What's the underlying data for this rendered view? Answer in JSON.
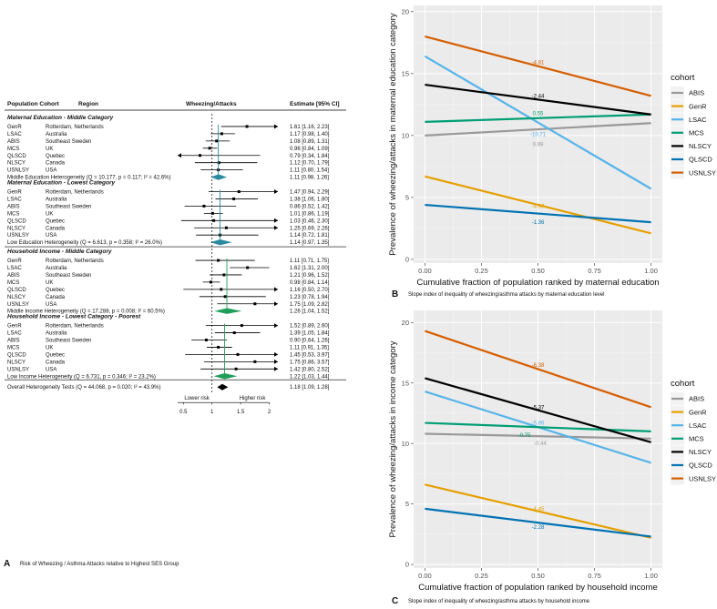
{
  "forest": {
    "headers": {
      "cohort": "Population Cohort",
      "region": "Region",
      "plot": "Wheezing/Attacks",
      "estimate": "Estimate [95% CI]"
    },
    "xticks": [
      "0.5",
      "1",
      "1.5",
      "2"
    ],
    "xtick_values": [
      0.5,
      1,
      1.5,
      2
    ],
    "xrange": [
      0.4,
      2.15
    ],
    "lower_label": "Lower risk",
    "higher_label": "Higher risk",
    "caption_letter": "A",
    "caption": "Risk of Wheezing / Asthma Attacks relative to Highest SES Group",
    "overall": {
      "label": "Overall Heterogeneity Tests (Q = 44.068, p = 0.020; I² = 43.9%)",
      "est": "1.18 [1.09, 1.28]",
      "value": 1.18
    },
    "sections": [
      {
        "title": "Maternal Education - Middle Category",
        "color": "#2b8a9e",
        "rows": [
          {
            "cohort": "GenR",
            "region": "Rotterdam, Netherlands",
            "est": "1.61 [1.16, 2.23]",
            "v": 1.61,
            "lo": 1.16,
            "hi": 2.23
          },
          {
            "cohort": "LSAC",
            "region": "Australia",
            "est": "1.17 [0.98, 1.40]",
            "v": 1.17,
            "lo": 0.98,
            "hi": 1.4
          },
          {
            "cohort": "ABIS",
            "region": "Southeast Sweden",
            "est": "1.08 [0.89, 1.31]",
            "v": 1.08,
            "lo": 0.89,
            "hi": 1.31
          },
          {
            "cohort": "MCS",
            "region": "UK",
            "est": "0.96 [0.84, 1.09]",
            "v": 0.96,
            "lo": 0.84,
            "hi": 1.09
          },
          {
            "cohort": "QLSCD",
            "region": "Quebec",
            "est": "0.79 [0.34, 1.84]",
            "v": 0.79,
            "lo": 0.34,
            "hi": 1.84
          },
          {
            "cohort": "NLSCY",
            "region": "Canada",
            "est": "1.12 [0.70, 1.79]",
            "v": 1.12,
            "lo": 0.7,
            "hi": 1.79
          },
          {
            "cohort": "USNLSY",
            "region": "USA",
            "est": "1.11 [0.80, 1.54]",
            "v": 1.11,
            "lo": 0.8,
            "hi": 1.54
          }
        ],
        "summary": {
          "label": "Middle Education Heterogeneity (Q = 10.177, p = 0.117; I² = 42.6%)",
          "est": "1.11 [0.98, 1.26]",
          "v": 1.11,
          "lo": 0.98,
          "hi": 1.26
        }
      },
      {
        "title": "Maternal Education - Lowest Category",
        "color": "#2b8a9e",
        "rows": [
          {
            "cohort": "GenR",
            "region": "Rotterdam, Netherlands",
            "est": "1.47 [0.94, 2.29]",
            "v": 1.47,
            "lo": 0.94,
            "hi": 2.29
          },
          {
            "cohort": "LSAC",
            "region": "Australia",
            "est": "1.38 [1.06, 1.80]",
            "v": 1.38,
            "lo": 1.06,
            "hi": 1.8
          },
          {
            "cohort": "ABIS",
            "region": "Southeast Sweden",
            "est": "0.86 [0.52, 1.42]",
            "v": 0.86,
            "lo": 0.52,
            "hi": 1.42
          },
          {
            "cohort": "MCS",
            "region": "UK",
            "est": "1.01 [0.86, 1.19]",
            "v": 1.01,
            "lo": 0.86,
            "hi": 1.19
          },
          {
            "cohort": "QLSCD",
            "region": "Quebec",
            "est": "1.03 [0.46, 2.30]",
            "v": 1.03,
            "lo": 0.46,
            "hi": 2.3
          },
          {
            "cohort": "NLSCY",
            "region": "Canada",
            "est": "1.25 [0.69, 2.26]",
            "v": 1.25,
            "lo": 0.69,
            "hi": 2.26
          },
          {
            "cohort": "USNLSY",
            "region": "USA",
            "est": "1.14 [0.72, 1.81]",
            "v": 1.14,
            "lo": 0.72,
            "hi": 1.81
          }
        ],
        "summary": {
          "label": "Low Education Heterogeneity (Q = 6.613, p = 0.358; I² = 26.0%)",
          "est": "1.14 [0.97, 1.35]",
          "v": 1.14,
          "lo": 0.97,
          "hi": 1.35
        }
      },
      {
        "title": "Household Income - Middle Category",
        "color": "#1f9e5a",
        "rows": [
          {
            "cohort": "GenR",
            "region": "Rotterdam, Netherlands",
            "est": "1.11 [0.71, 1.75]",
            "v": 1.11,
            "lo": 0.71,
            "hi": 1.75
          },
          {
            "cohort": "LSAC",
            "region": "Australia",
            "est": "1.62 [1.31, 2.00]",
            "v": 1.62,
            "lo": 1.31,
            "hi": 2.0
          },
          {
            "cohort": "ABIS",
            "region": "Southeast Sweden",
            "est": "1.21 [0.96, 1.52]",
            "v": 1.21,
            "lo": 0.96,
            "hi": 1.52
          },
          {
            "cohort": "MCS",
            "region": "UK",
            "est": "0.98 [0.84, 1.14]",
            "v": 0.98,
            "lo": 0.84,
            "hi": 1.14
          },
          {
            "cohort": "QLSCD",
            "region": "Quebec",
            "est": "1.16 [0.50, 2.70]",
            "v": 1.16,
            "lo": 0.5,
            "hi": 2.7
          },
          {
            "cohort": "NLSCY",
            "region": "Canada",
            "est": "1.23 [0.78, 1.94]",
            "v": 1.23,
            "lo": 0.78,
            "hi": 1.94
          },
          {
            "cohort": "USNLSY",
            "region": "USA",
            "est": "1.75 [1.09, 2.82]",
            "v": 1.75,
            "lo": 1.09,
            "hi": 2.82
          }
        ],
        "summary": {
          "label": "Middle Income Heterogeneity (Q = 17.288, p = 0.008; I² = 60.5%)",
          "est": "1.26 [1.04, 1.52]",
          "v": 1.26,
          "lo": 1.04,
          "hi": 1.52
        }
      },
      {
        "title": "Household Income - Lowest Category - Poorest",
        "color": "#1f9e5a",
        "rows": [
          {
            "cohort": "GenR",
            "region": "Rotterdam, Netherlands",
            "est": "1.52 [0.89, 2.60]",
            "v": 1.52,
            "lo": 0.89,
            "hi": 2.6
          },
          {
            "cohort": "LSAC",
            "region": "Australia",
            "est": "1.39 [1.05, 1.84]",
            "v": 1.39,
            "lo": 1.05,
            "hi": 1.84
          },
          {
            "cohort": "ABIS",
            "region": "Southeast Sweden",
            "est": "0.90 [0.64, 1.26]",
            "v": 0.9,
            "lo": 0.64,
            "hi": 1.26
          },
          {
            "cohort": "MCS",
            "region": "UK",
            "est": "1.11 [0.91, 1.35]",
            "v": 1.11,
            "lo": 0.91,
            "hi": 1.35
          },
          {
            "cohort": "QLSCD",
            "region": "Quebec",
            "est": "1.45 [0.53, 3.97]",
            "v": 1.45,
            "lo": 0.53,
            "hi": 3.97
          },
          {
            "cohort": "NLSCY",
            "region": "Canada",
            "est": "1.75 [0.86, 3.57]",
            "v": 1.75,
            "lo": 0.86,
            "hi": 3.57
          },
          {
            "cohort": "USNLSY",
            "region": "USA",
            "est": "1.42 [0.80, 2.52]",
            "v": 1.42,
            "lo": 0.8,
            "hi": 2.52
          }
        ],
        "summary": {
          "label": "Low Income Heterogeneity (Q = 6.731, p = 0.346; I² = 23.2%)",
          "est": "1.22 [1.03, 1.44]",
          "v": 1.22,
          "lo": 1.03,
          "hi": 1.44
        }
      }
    ]
  },
  "chart_data": [
    {
      "type": "line",
      "letter": "B",
      "caption": "Slope index of inequality of wheezing/asthma attacks by maternal education level",
      "xlabel": "Cumulative fraction of population ranked by maternal education",
      "ylabel": "Prevalence of wheezing/attacks in maternal education category",
      "xlim": [
        -0.05,
        1.05
      ],
      "ylim": [
        -0.3,
        20.5
      ],
      "xticks": [
        0,
        0.25,
        0.5,
        0.75,
        1
      ],
      "xticklabels": [
        "0.00",
        "0.25",
        "0.50",
        "0.75",
        "1.00"
      ],
      "yticks": [
        0,
        5,
        10,
        15,
        20
      ],
      "yticklabels": [
        "0",
        "5",
        "10",
        "15",
        "20"
      ],
      "legend_title": "cohort",
      "series": [
        {
          "name": "ABIS",
          "color": "#999999",
          "start": 10.0,
          "end": 11.0,
          "label": "0.99",
          "label_y": 9.3
        },
        {
          "name": "GenR",
          "color": "#E69F00",
          "start": 6.7,
          "end": 2.1,
          "label": "-4.67",
          "label_y": 4.3
        },
        {
          "name": "LSAC",
          "color": "#56B4E9",
          "start": 16.4,
          "end": 5.7,
          "label": "-10.71",
          "label_y": 10.1
        },
        {
          "name": "MCS",
          "color": "#009E73",
          "start": 11.1,
          "end": 11.7,
          "label": "0.55",
          "label_y": 11.8
        },
        {
          "name": "NLSCY",
          "color": "#000000",
          "start": 14.1,
          "end": 11.7,
          "label": "-2.44",
          "label_y": 13.2
        },
        {
          "name": "QLSCD",
          "color": "#0072B2",
          "start": 4.4,
          "end": 3.0,
          "label": "-1.36",
          "label_y": 3.0
        },
        {
          "name": "USNLSY",
          "color": "#D55E00",
          "start": 18.0,
          "end": 13.2,
          "label": "-4.81",
          "label_y": 15.9
        }
      ]
    },
    {
      "type": "line",
      "letter": "C",
      "caption": "Slope index of inequality of wheezing/asthma attacks by household income",
      "xlabel": "Cumulative fraction of population ranked by household income",
      "ylabel": "Prevalence of wheezing/attacks in income category",
      "xlim": [
        -0.05,
        1.05
      ],
      "ylim": [
        -0.3,
        21.0
      ],
      "xticks": [
        0,
        0.25,
        0.5,
        0.75,
        1
      ],
      "xticklabels": [
        "0.00",
        "0.25",
        "0.50",
        "0.75",
        "1.00"
      ],
      "yticks": [
        0,
        5,
        10,
        15,
        20
      ],
      "yticklabels": [
        "0",
        "5",
        "10",
        "15",
        "20"
      ],
      "legend_title": "cohort",
      "series": [
        {
          "name": "ABIS",
          "color": "#999999",
          "start": 10.8,
          "end": 10.4,
          "label": "-0.44",
          "label_y": 10.0,
          "label_x": 0.51
        },
        {
          "name": "GenR",
          "color": "#E69F00",
          "start": 6.6,
          "end": 2.2,
          "label": "-4.45",
          "label_y": 4.6
        },
        {
          "name": "LSAC",
          "color": "#56B4E9",
          "start": 14.3,
          "end": 8.4,
          "label": "-5.86",
          "label_y": 11.7
        },
        {
          "name": "MCS",
          "color": "#009E73",
          "start": 11.7,
          "end": 11.0,
          "label": "-0.75",
          "label_y": 10.7,
          "label_x": 0.44
        },
        {
          "name": "NLSCY",
          "color": "#000000",
          "start": 15.4,
          "end": 10.1,
          "label": "-5.37",
          "label_y": 13.0
        },
        {
          "name": "QLSCD",
          "color": "#0072B2",
          "start": 4.6,
          "end": 2.3,
          "label": "-2.28",
          "label_y": 3.1
        },
        {
          "name": "USNLSY",
          "color": "#D55E00",
          "start": 19.3,
          "end": 13.0,
          "label": "-6.38",
          "label_y": 16.5
        }
      ]
    }
  ]
}
